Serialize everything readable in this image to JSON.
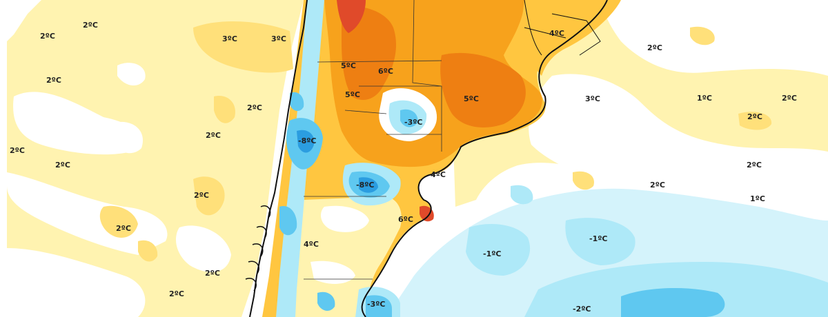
{
  "map": {
    "unit": "°C",
    "colors": {
      "ocean_white": "#ffffff",
      "pale_cyan": "#d4f3fb",
      "light_cyan": "#aee9f8",
      "light_blue": "#5fc8f0",
      "blue": "#2b9de0",
      "pale_yellow": "#fff3b0",
      "yellow": "#ffe07a",
      "gold": "#ffc640",
      "orange": "#f7a21c",
      "dark_orange": "#ee7f12",
      "red": "#e04a2a",
      "coast": "#111111"
    },
    "labels": [
      {
        "id": "l1",
        "text": "2ºC"
      },
      {
        "id": "l2",
        "text": "2ºC"
      },
      {
        "id": "l3",
        "text": "3ºC"
      },
      {
        "id": "l4",
        "text": "3ºC"
      },
      {
        "id": "l5",
        "text": "2ºC"
      },
      {
        "id": "l6",
        "text": "2ºC"
      },
      {
        "id": "l7",
        "text": "2ºC"
      },
      {
        "id": "l8",
        "text": "2ºC"
      },
      {
        "id": "l9",
        "text": "2ºC"
      },
      {
        "id": "l10",
        "text": "2ºC"
      },
      {
        "id": "l11",
        "text": "2ºC"
      },
      {
        "id": "l12",
        "text": "2ºC"
      },
      {
        "id": "l13",
        "text": "-8ºC"
      },
      {
        "id": "l14",
        "text": "-8ºC"
      },
      {
        "id": "l15",
        "text": "5ºC"
      },
      {
        "id": "l16",
        "text": "6ºC"
      },
      {
        "id": "l17",
        "text": "5ºC"
      },
      {
        "id": "l18",
        "text": "-3ºC"
      },
      {
        "id": "l19",
        "text": "5ºC"
      },
      {
        "id": "l20",
        "text": "4ºC"
      },
      {
        "id": "l21",
        "text": "4ºC"
      },
      {
        "id": "l22",
        "text": "6ºC"
      },
      {
        "id": "l23",
        "text": "4ºC"
      },
      {
        "id": "l24",
        "text": "-3ºC"
      },
      {
        "id": "l25",
        "text": "2ºC"
      },
      {
        "id": "l26",
        "text": "3ºC"
      },
      {
        "id": "l27",
        "text": "1ºC"
      },
      {
        "id": "l28",
        "text": "2ºC"
      },
      {
        "id": "l29",
        "text": "2ºC"
      },
      {
        "id": "l30",
        "text": "2ºC"
      },
      {
        "id": "l31",
        "text": "2ºC"
      },
      {
        "id": "l32",
        "text": "1ºC"
      },
      {
        "id": "l33",
        "text": "-1ºC"
      },
      {
        "id": "l34",
        "text": "-1ºC"
      },
      {
        "id": "l35",
        "text": "-2ºC"
      }
    ]
  }
}
